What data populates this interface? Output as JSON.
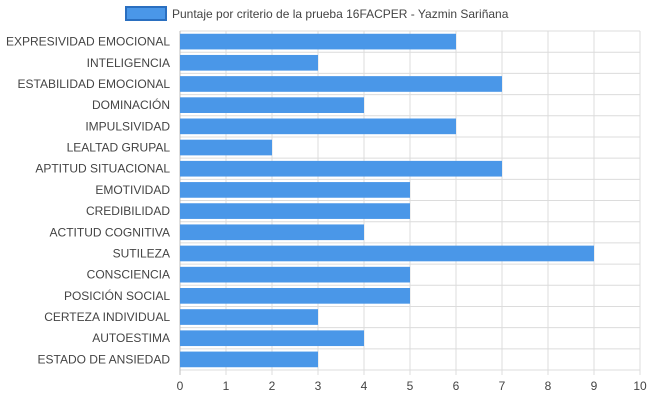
{
  "chart_data": {
    "type": "bar",
    "orientation": "horizontal",
    "title": "",
    "xlabel": "",
    "ylabel": "",
    "xlim": [
      0,
      10
    ],
    "x_ticks": [
      "0",
      "1",
      "2",
      "3",
      "4",
      "5",
      "6",
      "7",
      "8",
      "9",
      "10"
    ],
    "grid": true,
    "legend_position": "top",
    "categories": [
      "EXPRESIVIDAD EMOCIONAL",
      "INTELIGENCIA",
      "ESTABILIDAD EMOCIONAL",
      "DOMINACIÓN",
      "IMPULSIVIDAD",
      "LEALTAD GRUPAL",
      "APTITUD SITUACIONAL",
      "EMOTIVIDAD",
      "CREDIBILIDAD",
      "ACTITUD COGNITIVA",
      "SUTILEZA",
      "CONSCIENCIA",
      "POSICIÓN SOCIAL",
      "CERTEZA INDIVIDUAL",
      "AUTOESTIMA",
      "ESTADO DE ANSIEDAD"
    ],
    "series": [
      {
        "name": "Puntaje por criterio de la prueba 16FACPER - Yazmin Sariñana",
        "values": [
          6,
          3,
          7,
          4,
          6,
          2,
          7,
          5,
          5,
          4,
          9,
          5,
          5,
          3,
          4,
          3
        ]
      }
    ]
  },
  "colors": {
    "bar_fill": "#4a97e8",
    "legend_border": "#2a6fc0",
    "grid_line": "#dcdcdc",
    "axis_line": "#bdbdbd",
    "text": "#444444"
  }
}
